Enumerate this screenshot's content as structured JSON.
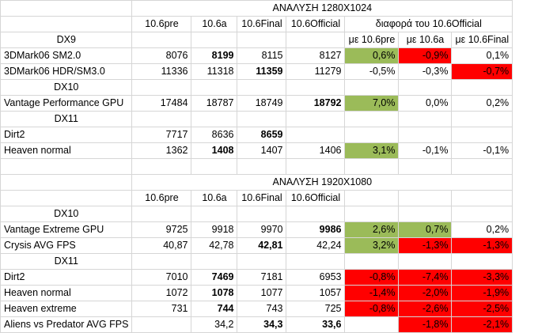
{
  "colors": {
    "better": "#9bbb59",
    "worse": "#ff0000",
    "grid": "#d6d6d6"
  },
  "section1": {
    "title": "ΑΝΑΛΥΣΗ 1280X1024",
    "versions": [
      "10.6pre",
      "10.6a",
      "10.6Final",
      "10.6Official"
    ],
    "diff_title": "διαφορά του 10.6Official",
    "diff_cols": [
      "με 10.6pre",
      "με 10.6a",
      "με 10.6Final"
    ],
    "groups": {
      "dx9": "DX9",
      "dx10": "DX10",
      "dx11": "DX11"
    },
    "rows": {
      "sm2": {
        "name": "3DMark06 SM2.0",
        "v": [
          "8076",
          "8199",
          "8115",
          "8127"
        ],
        "d": [
          "0,6%",
          "-0,9%",
          "0,1%"
        ]
      },
      "hdr": {
        "name": "3DMark06 HDR/SM3.0",
        "v": [
          "11336",
          "11318",
          "11359",
          "11279"
        ],
        "d": [
          "-0,5%",
          "-0,3%",
          "-0,7%"
        ]
      },
      "vantage": {
        "name": "Vantage Performance GPU",
        "v": [
          "17484",
          "18787",
          "18749",
          "18792"
        ],
        "d": [
          "7,0%",
          "0,0%",
          "0,2%"
        ]
      },
      "dirt2": {
        "name": "Dirt2",
        "v": [
          "7717",
          "8636",
          "8659",
          ""
        ],
        "d": [
          "",
          "",
          ""
        ]
      },
      "heaven": {
        "name": "Heaven normal",
        "v": [
          "1362",
          "1408",
          "1407",
          "1406"
        ],
        "d": [
          "3,1%",
          "-0,1%",
          "-0,1%"
        ]
      }
    }
  },
  "section2": {
    "title": "ΑΝΑΛΥΣΗ 1920X1080",
    "versions": [
      "10.6pre",
      "10.6a",
      "10.6Final",
      "10.6Official"
    ],
    "groups": {
      "dx10": "DX10",
      "dx11": "DX11"
    },
    "rows": {
      "vantage": {
        "name": "Vantage Extreme GPU",
        "v": [
          "9725",
          "9918",
          "9970",
          "9986"
        ],
        "d": [
          "2,6%",
          "0,7%",
          "0,2%"
        ]
      },
      "crysis": {
        "name": "Crysis AVG FPS",
        "v": [
          "40,87",
          "42,78",
          "42,81",
          "42,24"
        ],
        "d": [
          "3,2%",
          "-1,3%",
          "-1,3%"
        ]
      },
      "dirt2": {
        "name": "Dirt2",
        "v": [
          "7010",
          "7469",
          "7181",
          "6953"
        ],
        "d": [
          "-0,8%",
          "-7,4%",
          "-3,3%"
        ]
      },
      "heaven_n": {
        "name": "Heaven normal",
        "v": [
          "1072",
          "1078",
          "1077",
          "1057"
        ],
        "d": [
          "-1,4%",
          "-2,0%",
          "-1,9%"
        ]
      },
      "heaven_e": {
        "name": "Heaven extreme",
        "v": [
          "731",
          "744",
          "743",
          "725"
        ],
        "d": [
          "-0,8%",
          "-2,6%",
          "-2,5%"
        ]
      },
      "avp": {
        "name": "Aliens vs Predator AVG FPS",
        "v": [
          "",
          "34,2",
          "34,3",
          "33,6"
        ],
        "d": [
          "",
          "-1,8%",
          "-2,1%"
        ]
      }
    }
  }
}
